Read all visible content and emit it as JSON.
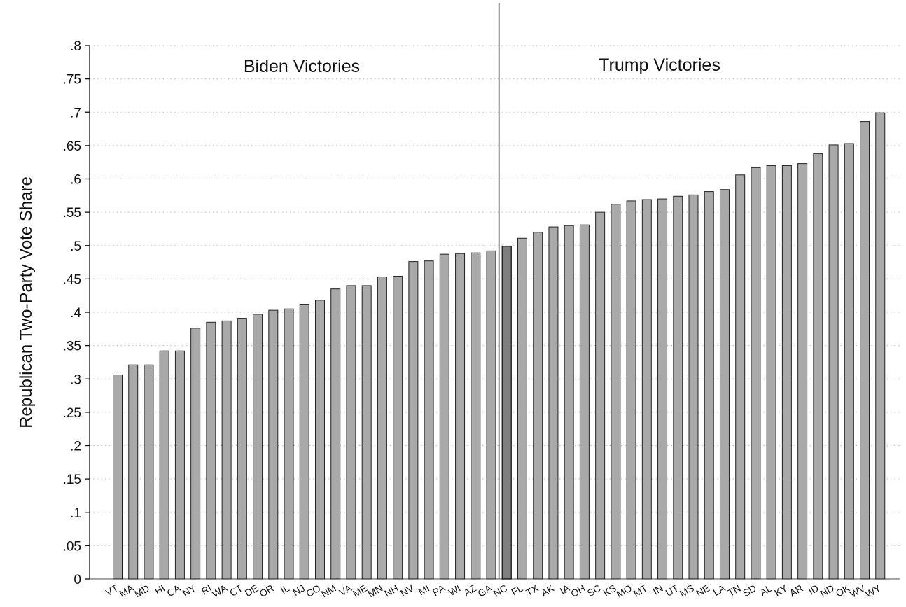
{
  "chart_data": {
    "type": "bar",
    "ylabel": "Republican Two-Party Vote Share",
    "ylim": [
      0,
      0.8
    ],
    "yticks": [
      {
        "value": 0,
        "label": "0"
      },
      {
        "value": 0.05,
        "label": ".05"
      },
      {
        "value": 0.1,
        "label": ".1"
      },
      {
        "value": 0.15,
        "label": ".15"
      },
      {
        "value": 0.2,
        "label": ".2"
      },
      {
        "value": 0.25,
        "label": ".25"
      },
      {
        "value": 0.3,
        "label": ".3"
      },
      {
        "value": 0.35,
        "label": ".35"
      },
      {
        "value": 0.4,
        "label": ".4"
      },
      {
        "value": 0.45,
        "label": ".45"
      },
      {
        "value": 0.5,
        "label": ".5"
      },
      {
        "value": 0.55,
        "label": ".55"
      },
      {
        "value": 0.6,
        "label": ".6"
      },
      {
        "value": 0.65,
        "label": ".65"
      },
      {
        "value": 0.7,
        "label": ".7"
      },
      {
        "value": 0.75,
        "label": ".75"
      },
      {
        "value": 0.8,
        "label": ".8"
      }
    ],
    "grid": true,
    "categories": [
      "VT",
      "MA",
      "MD",
      "HI",
      "CA",
      "NY",
      "RI",
      "WA",
      "CT",
      "DE",
      "OR",
      "IL",
      "NJ",
      "CO",
      "NM",
      "VA",
      "ME",
      "MN",
      "NH",
      "NV",
      "MI",
      "PA",
      "WI",
      "AZ",
      "GA",
      "NC",
      "FL",
      "TX",
      "AK",
      "IA",
      "OH",
      "SC",
      "KS",
      "MO",
      "MT",
      "IN",
      "UT",
      "MS",
      "NE",
      "LA",
      "TN",
      "SD",
      "AL",
      "KY",
      "AR",
      "ID",
      "ND",
      "OK",
      "WV",
      "WY"
    ],
    "values": [
      0.306,
      0.321,
      0.321,
      0.342,
      0.342,
      0.376,
      0.385,
      0.387,
      0.391,
      0.397,
      0.403,
      0.405,
      0.412,
      0.418,
      0.435,
      0.44,
      0.44,
      0.453,
      0.454,
      0.476,
      0.477,
      0.487,
      0.488,
      0.489,
      0.492,
      0.499,
      0.511,
      0.52,
      0.528,
      0.53,
      0.531,
      0.55,
      0.562,
      0.567,
      0.569,
      0.57,
      0.574,
      0.576,
      0.581,
      0.584,
      0.606,
      0.617,
      0.62,
      0.62,
      0.623,
      0.638,
      0.651,
      0.653,
      0.686,
      0.699
    ],
    "highlight": "NC",
    "colors": {
      "bar": "#a9a9a9",
      "highlight_bar": "#7f7f7f",
      "bar_edge": "#222222",
      "grid": "#b8b8b8"
    },
    "annotations": [
      {
        "text": "Biden Victories",
        "side": "left"
      },
      {
        "text": "Trump Victories",
        "side": "right"
      }
    ],
    "divider_after": "GA"
  }
}
